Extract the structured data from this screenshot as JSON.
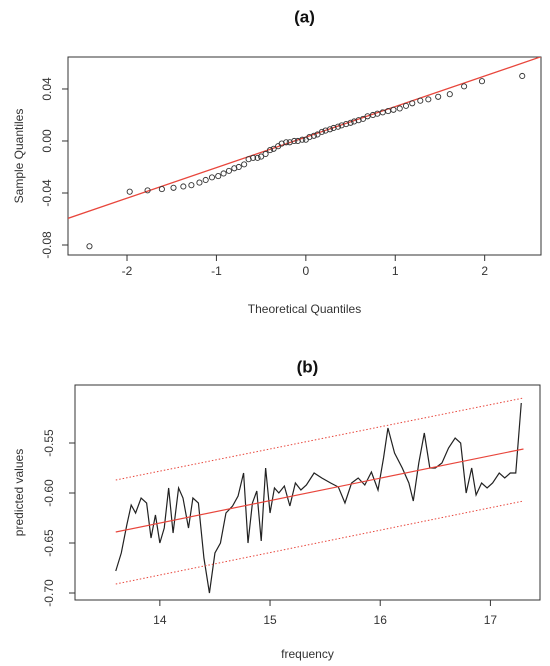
{
  "chart_data": [
    {
      "type": "scatter",
      "title": "(a)",
      "x_label": "Theoretical Quantiles",
      "y_label": "Sample Quantiles",
      "xlim": [
        -2.66,
        2.63
      ],
      "ylim": [
        -0.0877,
        0.0646
      ],
      "xticks": [
        -2,
        -1,
        0,
        1,
        2
      ],
      "yticks": [
        -0.08,
        -0.04,
        {
          "value": 0,
          "label": "0.00"
        },
        0.04
      ],
      "point_color": "#333333",
      "reference_line": {
        "intercept": 0.003,
        "slope": 0.0235,
        "color": "#e8463c"
      },
      "x": [
        -2.42,
        -1.97,
        -1.77,
        -1.61,
        -1.48,
        -1.37,
        -1.28,
        -1.19,
        -1.12,
        -1.05,
        -0.98,
        -0.92,
        -0.86,
        -0.8,
        -0.75,
        -0.69,
        -0.64,
        -0.59,
        -0.54,
        -0.5,
        -0.45,
        -0.4,
        -0.36,
        -0.31,
        -0.27,
        -0.22,
        -0.18,
        -0.13,
        -0.09,
        -0.04,
        0.0,
        0.04,
        0.09,
        0.13,
        0.18,
        0.22,
        0.27,
        0.31,
        0.36,
        0.4,
        0.45,
        0.5,
        0.54,
        0.59,
        0.64,
        0.69,
        0.75,
        0.8,
        0.86,
        0.92,
        0.98,
        1.05,
        1.12,
        1.19,
        1.28,
        1.37,
        1.48,
        1.61,
        1.77,
        1.97,
        2.42
      ],
      "values": [
        -0.081,
        -0.039,
        -0.038,
        -0.037,
        -0.036,
        -0.035,
        -0.034,
        -0.032,
        -0.03,
        -0.028,
        -0.027,
        -0.025,
        -0.023,
        -0.021,
        -0.02,
        -0.018,
        -0.014,
        -0.013,
        -0.013,
        -0.012,
        -0.01,
        -0.007,
        -0.006,
        -0.004,
        -0.002,
        -0.001,
        -0.001,
        0.0,
        0.0,
        0.001,
        0.001,
        0.003,
        0.004,
        0.005,
        0.007,
        0.008,
        0.009,
        0.01,
        0.011,
        0.012,
        0.013,
        0.014,
        0.015,
        0.016,
        0.017,
        0.019,
        0.02,
        0.021,
        0.022,
        0.023,
        0.024,
        0.025,
        0.027,
        0.029,
        0.031,
        0.032,
        0.034,
        0.036,
        0.042,
        0.046,
        0.05
      ]
    },
    {
      "type": "line",
      "title": "(b)",
      "x_label": "frequency",
      "y_label": "predicted values",
      "xlim": [
        13.23,
        17.45
      ],
      "ylim": [
        -0.707,
        -0.492
      ],
      "xticks": [
        14,
        15,
        16,
        17
      ],
      "yticks": [
        {
          "value": -0.7,
          "label": "-0.70"
        },
        -0.65,
        {
          "value": -0.6,
          "label": "-0.60"
        },
        -0.55
      ],
      "series": [
        {
          "color": "#222222",
          "dash": false,
          "x": [
            13.6,
            13.65,
            13.7,
            13.74,
            13.78,
            13.83,
            13.88,
            13.92,
            13.96,
            14.0,
            14.04,
            14.08,
            14.12,
            14.17,
            14.21,
            14.26,
            14.3,
            14.35,
            14.4,
            14.45,
            14.5,
            14.55,
            14.6,
            14.66,
            14.71,
            14.76,
            14.8,
            14.84,
            14.88,
            14.92,
            14.96,
            15.0,
            15.04,
            15.08,
            15.13,
            15.18,
            15.23,
            15.28,
            15.33,
            15.4,
            15.47,
            15.55,
            15.62,
            15.68,
            15.74,
            15.8,
            15.86,
            15.92,
            15.98,
            16.03,
            16.07,
            16.13,
            16.2,
            16.26,
            16.3,
            16.35,
            16.4,
            16.45,
            16.5,
            16.56,
            16.62,
            16.68,
            16.73,
            16.78,
            16.83,
            16.87,
            16.92,
            16.97,
            17.02,
            17.08,
            17.13,
            17.18,
            17.23,
            17.28
          ],
          "values": [
            -0.678,
            -0.66,
            -0.632,
            -0.612,
            -0.62,
            -0.605,
            -0.61,
            -0.645,
            -0.622,
            -0.65,
            -0.635,
            -0.595,
            -0.64,
            -0.595,
            -0.605,
            -0.635,
            -0.605,
            -0.61,
            -0.665,
            -0.7,
            -0.66,
            -0.65,
            -0.62,
            -0.613,
            -0.603,
            -0.58,
            -0.65,
            -0.61,
            -0.598,
            -0.648,
            -0.575,
            -0.62,
            -0.595,
            -0.6,
            -0.593,
            -0.613,
            -0.59,
            -0.597,
            -0.592,
            -0.58,
            -0.585,
            -0.59,
            -0.594,
            -0.61,
            -0.59,
            -0.585,
            -0.592,
            -0.579,
            -0.597,
            -0.565,
            -0.535,
            -0.56,
            -0.575,
            -0.59,
            -0.608,
            -0.57,
            -0.54,
            -0.575,
            -0.575,
            -0.57,
            -0.555,
            -0.545,
            -0.55,
            -0.6,
            -0.575,
            -0.602,
            -0.59,
            -0.595,
            -0.59,
            -0.58,
            -0.585,
            -0.58,
            -0.58,
            -0.51
          ]
        },
        {
          "color": "#e8463c",
          "dash": false,
          "x": [
            13.6,
            17.3
          ],
          "values": [
            -0.639,
            -0.556
          ]
        },
        {
          "color": "#e8463c",
          "dash": true,
          "x": [
            13.6,
            17.3
          ],
          "values": [
            -0.587,
            -0.505
          ]
        },
        {
          "color": "#e8463c",
          "dash": true,
          "x": [
            13.6,
            17.3
          ],
          "values": [
            -0.691,
            -0.608
          ]
        }
      ]
    }
  ]
}
